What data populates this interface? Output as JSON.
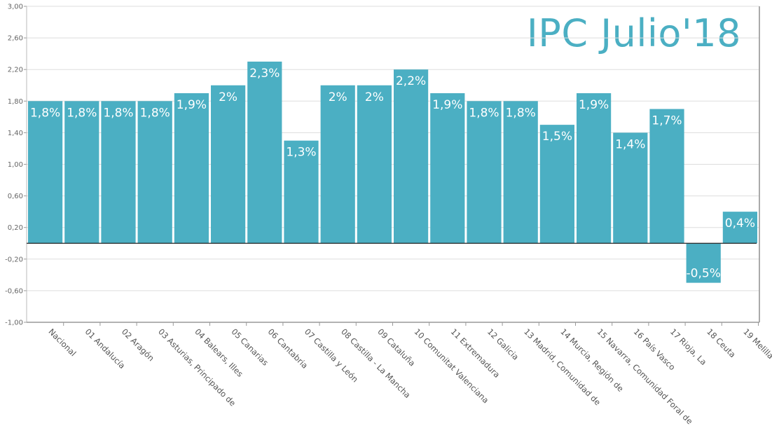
{
  "chart_data": {
    "type": "bar",
    "title": "IPC Julio'18",
    "categories": [
      "Nacional",
      "01 Andalucía",
      "02 Aragón",
      "03 Asturias, Principado de",
      "04 Balears, Illes",
      "05 Canarias",
      "06 Cantabria",
      "07 Castilla y León",
      "08 Castilla - La Mancha",
      "09 Cataluña",
      "10 Comunitat Valenciana",
      "11 Extremadura",
      "12 Galicia",
      "13 Madrid, Comunidad de",
      "14 Murcia, Región de",
      "15 Navarra, Comunidad Foral de",
      "16 País Vasco",
      "17 Rioja, La",
      "18 Ceuta",
      "19 Melilla"
    ],
    "values": [
      1.8,
      1.8,
      1.8,
      1.8,
      1.9,
      2.0,
      2.3,
      1.3,
      2.0,
      2.0,
      2.2,
      1.9,
      1.8,
      1.8,
      1.5,
      1.9,
      1.4,
      1.7,
      -0.5,
      0.4
    ],
    "data_labels": [
      "1,8%",
      "1,8%",
      "1,8%",
      "1,8%",
      "1,9%",
      "2%",
      "2,3%",
      "1,3%",
      "2%",
      "2%",
      "2,2%",
      "1,9%",
      "1,8%",
      "1,8%",
      "1,5%",
      "1,9%",
      "1,4%",
      "1,7%",
      "-0,5%",
      "0,4%"
    ],
    "y_ticks": [
      "3,00",
      "2,60",
      "2,20",
      "1,80",
      "1,40",
      "1,00",
      "0,60",
      "0,20",
      "-0,20",
      "-0,60",
      "-1,00"
    ],
    "ylim": [
      -1.0,
      3.0
    ],
    "grid": true,
    "legend": "none",
    "colors": {
      "bar": "#4bafc3",
      "title": "#4bafc3",
      "grid": "#dddddd",
      "zero_line": "#222222"
    }
  }
}
